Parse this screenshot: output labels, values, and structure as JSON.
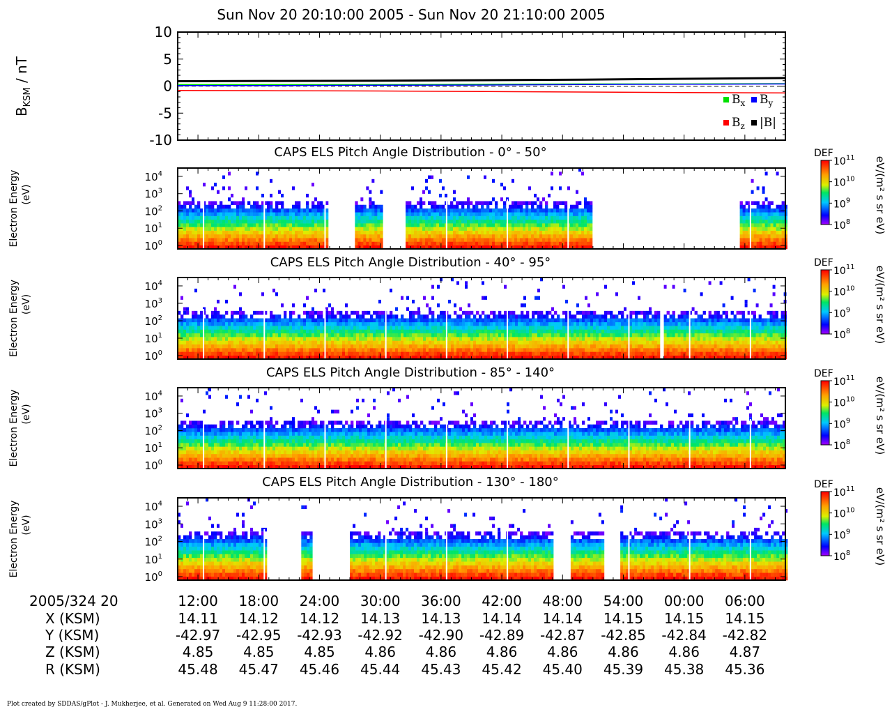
{
  "title": "Sun Nov 20 20:10:00 2005 - Sun Nov 20 21:10:00 2005",
  "footer": "Plot created by SDDAS/gPlot - J. Mukherjee, et al.  Generated on Wed Aug 9 11:28:00 2017.",
  "colors": {
    "bx": "#00e000",
    "by": "#0000ff",
    "bz": "#ff0000",
    "bmag": "#000000"
  },
  "chart_data": [
    {
      "type": "line",
      "ylabel": "B",
      "ylabel_sub": "KSM",
      "ylabel_unit": "/ nT",
      "ylim": [
        -10,
        10
      ],
      "yticks": [
        "10",
        "5",
        "0",
        "-5",
        "-10"
      ],
      "x_minutes": [
        0,
        10,
        20,
        30,
        40,
        50,
        60
      ],
      "series": [
        {
          "name": "B",
          "sub": "x",
          "color": "#00e000",
          "values": [
            0.3,
            0.3,
            0.3,
            0.35,
            0.4,
            0.4,
            0.45
          ]
        },
        {
          "name": "B",
          "sub": "y",
          "color": "#0000ff",
          "values": [
            0.1,
            0.1,
            0.15,
            0.2,
            0.3,
            0.35,
            0.4
          ]
        },
        {
          "name": "B",
          "sub": "z",
          "color": "#ff0000",
          "values": [
            -0.8,
            -0.85,
            -0.9,
            -1.0,
            -1.1,
            -1.2,
            -1.25
          ]
        },
        {
          "name": "|B|",
          "sub": "",
          "color": "#000000",
          "values": [
            0.9,
            0.95,
            1.0,
            1.1,
            1.2,
            1.35,
            1.5
          ]
        }
      ]
    },
    {
      "type": "heatmap",
      "title": "CAPS ELS Pitch Angle Distribution - 0° - 50°",
      "ylabel": "Electron Energy",
      "yunit": "(eV)",
      "ylog": true,
      "yticks": [
        "10",
        "10",
        "10",
        "10",
        "10"
      ],
      "ytick_exp": [
        "4",
        "3",
        "2",
        "1",
        "0"
      ],
      "cbar_label": "DEF",
      "cbar_unit": "eV/(m² s sr eV)",
      "cbar_ticks": [
        "11",
        "10",
        "9",
        "8"
      ],
      "data_intervals_min": [
        [
          0,
          14.7
        ],
        [
          17.5,
          20.2
        ],
        [
          22.5,
          40.7
        ],
        [
          55.5,
          60
        ]
      ]
    },
    {
      "type": "heatmap",
      "title": "CAPS ELS Pitch Angle Distribution - 40° - 95°",
      "ylabel": "Electron Energy",
      "yunit": "(eV)",
      "ylog": true,
      "yticks": [
        "10",
        "10",
        "10",
        "10",
        "10"
      ],
      "ytick_exp": [
        "4",
        "3",
        "2",
        "1",
        "0"
      ],
      "cbar_label": "DEF",
      "cbar_unit": "eV/(m² s sr eV)",
      "cbar_ticks": [
        "11",
        "10",
        "9",
        "8"
      ],
      "data_intervals_min": [
        [
          0,
          47.5
        ],
        [
          48.0,
          60
        ]
      ]
    },
    {
      "type": "heatmap",
      "title": "CAPS ELS Pitch Angle Distribution - 85° - 140°",
      "ylabel": "Electron Energy",
      "yunit": "(eV)",
      "ylog": true,
      "yticks": [
        "10",
        "10",
        "10",
        "10",
        "10"
      ],
      "ytick_exp": [
        "4",
        "3",
        "2",
        "1",
        "0"
      ],
      "cbar_label": "DEF",
      "cbar_unit": "eV/(m² s sr eV)",
      "cbar_ticks": [
        "11",
        "10",
        "9",
        "8"
      ],
      "data_intervals_min": [
        [
          0,
          60
        ]
      ]
    },
    {
      "type": "heatmap",
      "title": "CAPS ELS Pitch Angle Distribution - 130° - 180°",
      "ylabel": "Electron Energy",
      "yunit": "(eV)",
      "ylog": true,
      "yticks": [
        "10",
        "10",
        "10",
        "10",
        "10"
      ],
      "ytick_exp": [
        "4",
        "3",
        "2",
        "1",
        "0"
      ],
      "cbar_label": "DEF",
      "cbar_unit": "eV/(m² s sr eV)",
      "cbar_ticks": [
        "11",
        "10",
        "9",
        "8"
      ],
      "data_intervals_min": [
        [
          0,
          8.6
        ],
        [
          12.2,
          13.2
        ],
        [
          17.0,
          37.0
        ],
        [
          38.8,
          42.0
        ],
        [
          43.7,
          60
        ]
      ]
    }
  ],
  "ephemeris": {
    "row_labels": [
      "2005/324 20",
      "X (KSM)",
      "Y (KSM)",
      "Z (KSM)",
      "R (KSM)"
    ],
    "times": [
      "12:00",
      "18:00",
      "24:00",
      "30:00",
      "36:00",
      "42:00",
      "48:00",
      "54:00",
      "00:00",
      "06:00"
    ],
    "x": [
      "14.11",
      "14.12",
      "14.12",
      "14.13",
      "14.13",
      "14.14",
      "14.14",
      "14.15",
      "14.15",
      "14.15"
    ],
    "y": [
      "-42.97",
      "-42.95",
      "-42.93",
      "-42.92",
      "-42.90",
      "-42.89",
      "-42.87",
      "-42.85",
      "-42.84",
      "-42.82"
    ],
    "z": [
      "4.85",
      "4.85",
      "4.85",
      "4.86",
      "4.86",
      "4.86",
      "4.86",
      "4.86",
      "4.86",
      "4.87"
    ],
    "r": [
      "45.48",
      "45.47",
      "45.46",
      "45.44",
      "45.43",
      "45.42",
      "45.40",
      "45.39",
      "45.38",
      "45.36"
    ]
  }
}
